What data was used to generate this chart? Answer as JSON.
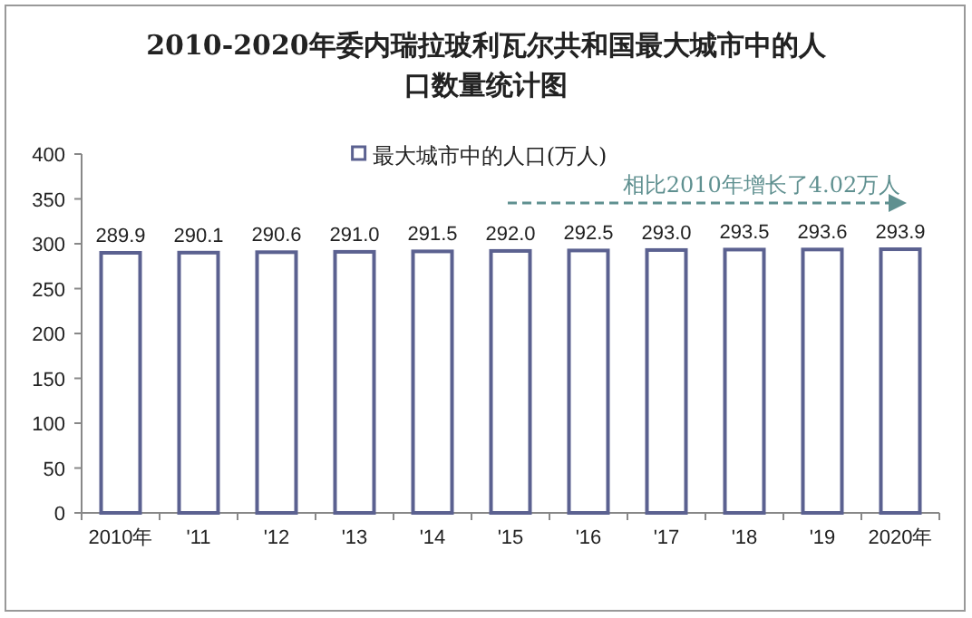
{
  "chart_data": {
    "type": "bar",
    "title": "2010-2020年委内瑞拉玻利瓦尔共和国最大城市中的人口数量统计图",
    "categories": [
      "2010年",
      "'11",
      "'12",
      "'13",
      "'14",
      "'15",
      "'16",
      "'17",
      "'18",
      "'19",
      "2020年"
    ],
    "series": [
      {
        "name": "最大城市中的人口(万人)",
        "color": "#5b6190",
        "values": [
          289.9,
          290.1,
          290.6,
          291.0,
          291.5,
          292.0,
          292.5,
          293.0,
          293.5,
          293.6,
          293.9
        ],
        "value_labels": [
          "289.9",
          "290.1",
          "290.6",
          "291.0",
          "291.5",
          "292.0",
          "292.5",
          "293.0",
          "293.5",
          "293.6",
          "293.9"
        ]
      }
    ],
    "ylim": [
      0,
      400
    ],
    "yticks": [
      0,
      50,
      100,
      150,
      200,
      250,
      300,
      350,
      400
    ],
    "legend": "top",
    "grid": false,
    "annotations": [
      "相比2010年增长了4.02万人"
    ]
  }
}
